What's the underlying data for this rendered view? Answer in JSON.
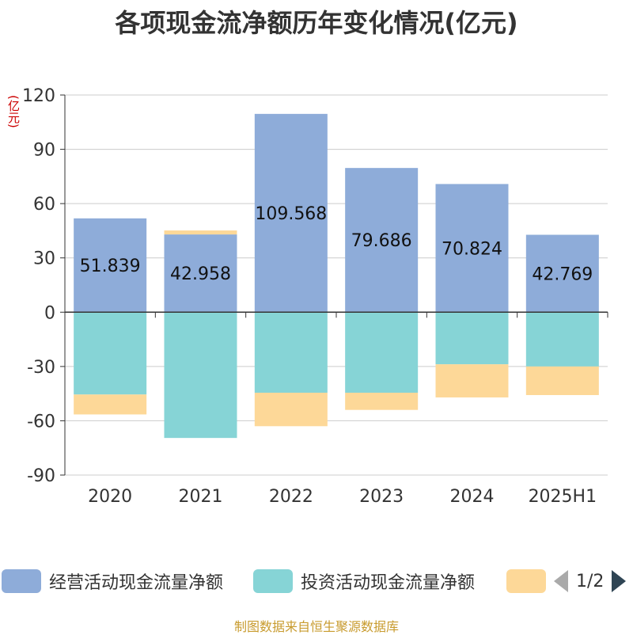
{
  "chart_data": {
    "type": "bar",
    "stacked": true,
    "title": "各项现金流净额历年变化情况(亿元)",
    "ylabel": "(亿元)",
    "categories": [
      "2020",
      "2021",
      "2022",
      "2023",
      "2024",
      "2025H1"
    ],
    "ylim": [
      -90,
      120
    ],
    "yticks": [
      120,
      90,
      60,
      30,
      0,
      -30,
      -60,
      -90
    ],
    "grid": true,
    "legend_position": "bottom",
    "series": [
      {
        "name": "经营活动现金流量净额",
        "color": "#8eacd9",
        "values": [
          51.839,
          42.958,
          109.568,
          79.686,
          70.824,
          42.769
        ],
        "labels": [
          "51.839",
          "42.958",
          "109.568",
          "79.686",
          "70.824",
          "42.769"
        ]
      },
      {
        "name": "投资活动现金流量净额",
        "color": "#86d4d6",
        "values": [
          -45.5,
          -69.5,
          -44.5,
          -44.5,
          -28.8,
          -30.0
        ]
      },
      {
        "name": "",
        "color": "#fdd898",
        "values": [
          -11.0,
          2.2,
          -18.5,
          -9.5,
          -18.3,
          -15.8
        ]
      }
    ]
  },
  "legend": {
    "page": "1/2"
  },
  "footer": "制图数据来自恒生聚源数据库"
}
